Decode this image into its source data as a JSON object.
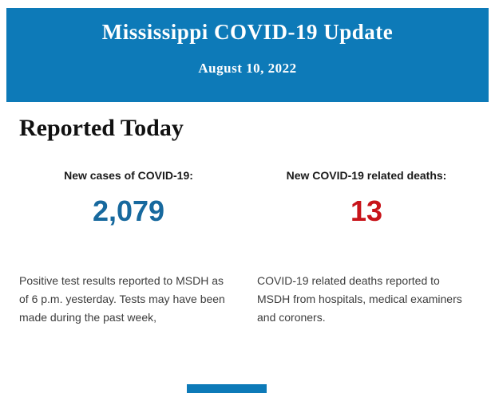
{
  "header": {
    "title": "Mississippi COVID-19 Update",
    "date": "August 10, 2022"
  },
  "main": {
    "heading": "Reported Today",
    "stats": [
      {
        "label": "New cases of COVID-19:",
        "value": "2,079",
        "value_color": "#17699e",
        "description": "Positive test results reported to MSDH as of 6 p.m. yesterday. Tests may have been made during the past week,"
      },
      {
        "label": "New COVID-19 related deaths:",
        "value": "13",
        "value_color": "#c8141a",
        "description": "COVID-19 related deaths reported to MSDH from hospitals, medical examiners and coroners."
      }
    ]
  },
  "colors": {
    "banner_blue": "#0d7ab8",
    "cases_blue": "#17699e",
    "deaths_red": "#c8141a",
    "body_text": "#3d3d3d"
  }
}
